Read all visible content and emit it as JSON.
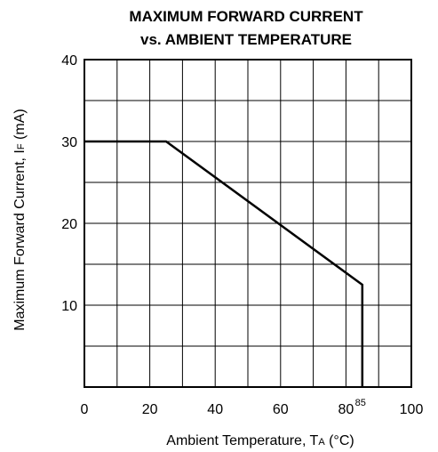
{
  "chart_data": {
    "type": "line",
    "title": "MAXIMUM FORWARD CURRENT",
    "subtitle": "vs. AMBIENT TEMPERATURE",
    "xlabel": {
      "main": "Ambient Temperature, T",
      "sub": "A",
      "unit": " (°C)"
    },
    "ylabel": {
      "main": "Maximum Forward Current, I",
      "sub": "F",
      "unit": " (mA)"
    },
    "xlim": [
      0,
      100
    ],
    "ylim": [
      0,
      40
    ],
    "x_ticks": [
      "0",
      "20",
      "40",
      "60",
      "80",
      "100"
    ],
    "x_tick_values": [
      0,
      20,
      40,
      60,
      80,
      100
    ],
    "x_extra_label": "85",
    "x_extra_value": 85,
    "y_ticks": [
      "10",
      "20",
      "30",
      "40"
    ],
    "y_tick_values": [
      10,
      20,
      30,
      40
    ],
    "grid": true,
    "x_grid_step": 10,
    "y_grid_step": 5,
    "series": [
      {
        "x": [
          0,
          25,
          85,
          85
        ],
        "y": [
          30,
          30,
          12.5,
          0
        ]
      }
    ]
  }
}
